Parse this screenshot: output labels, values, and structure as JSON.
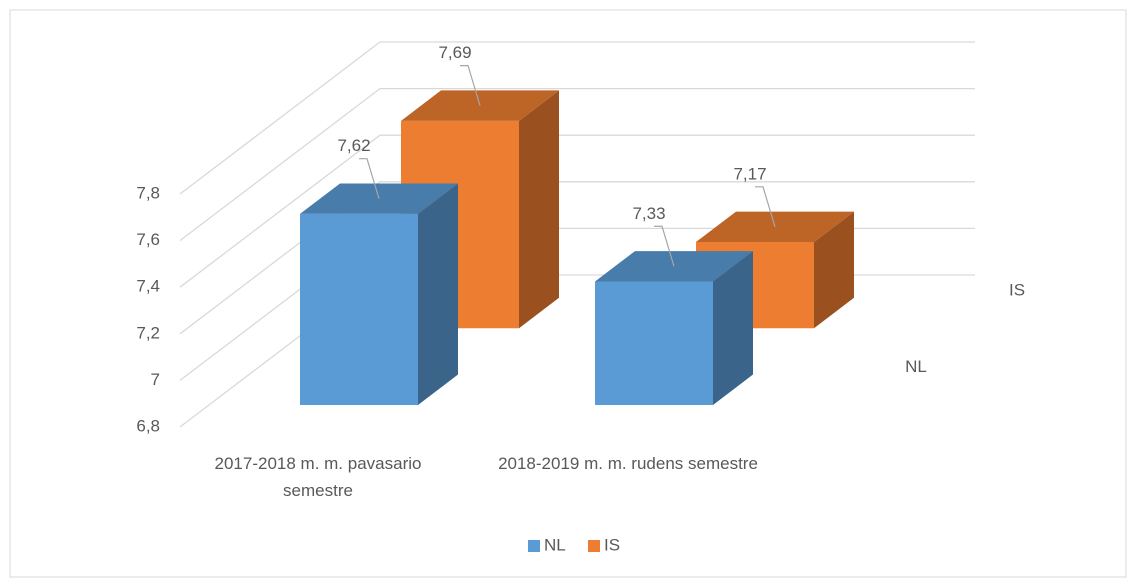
{
  "chart_data": {
    "type": "bar3d",
    "categories": [
      "2017-2018 m. m. pavasario semestre",
      "2018-2019 m. m. rudens semestre"
    ],
    "series": [
      {
        "name": "NL",
        "color": "#5b9bd5",
        "values": [
          7.62,
          7.33
        ],
        "value_labels": [
          "7,62",
          "7,33"
        ]
      },
      {
        "name": "IS",
        "color": "#ed7d31",
        "values": [
          7.69,
          7.17
        ],
        "value_labels": [
          "7,69",
          "7,17"
        ]
      }
    ],
    "ylim": [
      6.8,
      7.8
    ],
    "yticks": [
      {
        "value": 6.8,
        "label": "6,8"
      },
      7,
      {
        "value": 7.2,
        "label": "7,2"
      },
      {
        "value": 7.4,
        "label": "7,4"
      },
      {
        "value": 7.6,
        "label": "7,6"
      },
      {
        "value": 7.8,
        "label": "7,8"
      }
    ],
    "grid": true,
    "legend": "bottom"
  }
}
